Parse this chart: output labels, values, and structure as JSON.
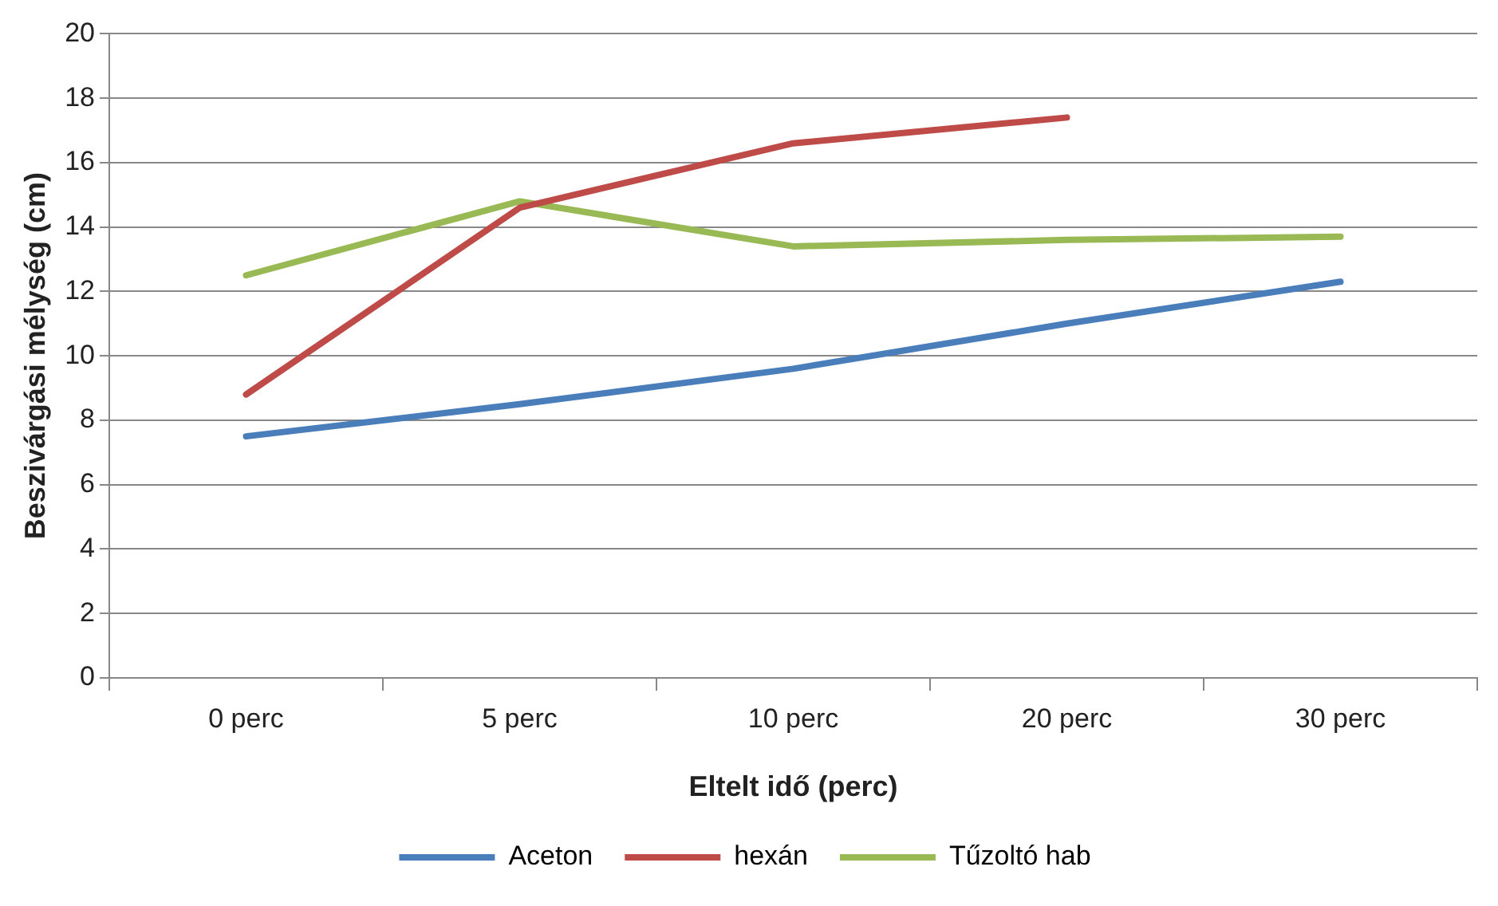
{
  "chart_data": {
    "type": "line",
    "xlabel": "Eltelt idő (perc)",
    "ylabel": "Beszivárgási mélység (cm)",
    "categories": [
      "0 perc",
      "5 perc",
      "10 perc",
      "20 perc",
      "30 perc"
    ],
    "series": [
      {
        "name": "Aceton",
        "color": "#4a7ebb",
        "values": [
          7.5,
          8.5,
          9.6,
          11.0,
          12.3
        ]
      },
      {
        "name": "hexán",
        "color": "#be4b48",
        "values": [
          8.8,
          14.6,
          16.6,
          17.4,
          null
        ]
      },
      {
        "name": "Tűzoltó hab",
        "color": "#98b954",
        "values": [
          12.5,
          14.8,
          13.4,
          13.6,
          13.7
        ]
      }
    ],
    "ylim": [
      0,
      20
    ],
    "yticks": [
      0,
      2,
      4,
      6,
      8,
      10,
      12,
      14,
      16,
      18,
      20
    ],
    "grid": "y",
    "legend": "bottom",
    "marker": "none",
    "line_style": "solid"
  }
}
